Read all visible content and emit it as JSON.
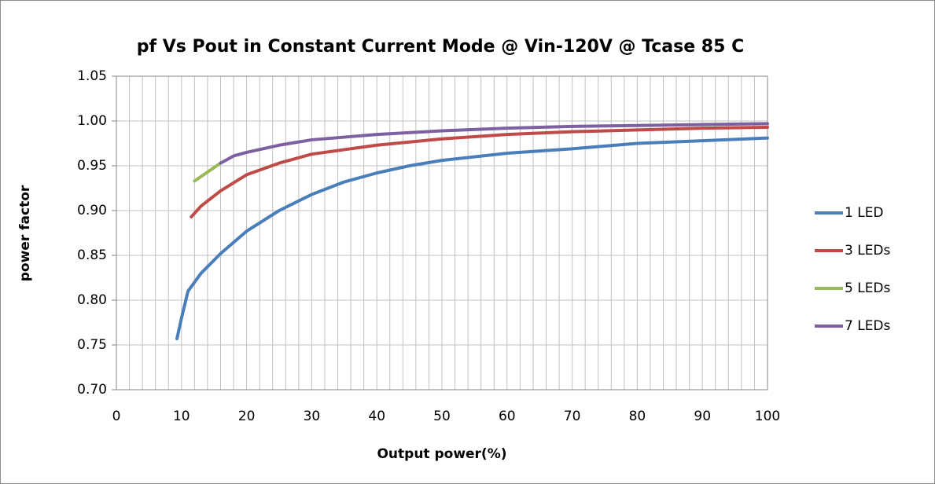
{
  "chart_data": {
    "type": "line",
    "title": "pf Vs Pout in Constant Current Mode @ Vin-120V @ Tcase 85 C",
    "xlabel": "Output power(%)",
    "ylabel": "power factor",
    "xlim": [
      0,
      100
    ],
    "xticks": [
      0,
      10,
      20,
      30,
      40,
      50,
      60,
      70,
      80,
      90,
      100
    ],
    "xminorticks": [
      2,
      4,
      6,
      8,
      12,
      14,
      16,
      18,
      22,
      24,
      26,
      28,
      32,
      34,
      36,
      38,
      42,
      44,
      46,
      48,
      52,
      54,
      56,
      58,
      62,
      64,
      66,
      68,
      72,
      74,
      76,
      78,
      82,
      84,
      86,
      88,
      92,
      94,
      96,
      98
    ],
    "ylim": [
      0.7,
      1.05
    ],
    "yticks": [
      1.05,
      {
        "value": 1,
        "label": "1.00"
      },
      0.95,
      {
        "value": 0.9,
        "label": "0.90"
      },
      0.85,
      {
        "value": 0.8,
        "label": "0.80"
      },
      0.75,
      {
        "value": 0.7,
        "label": "0.70"
      }
    ],
    "grid": true,
    "legend": "right",
    "series": [
      {
        "name": "1 LED",
        "color": "#4a7ebb",
        "x": [
          9.3,
          10,
          11,
          13,
          16,
          20,
          25,
          30,
          35,
          40,
          45,
          50,
          60,
          70,
          80,
          90,
          100
        ],
        "values": [
          0.757,
          0.78,
          0.81,
          0.83,
          0.852,
          0.877,
          0.9,
          0.918,
          0.932,
          0.942,
          0.95,
          0.956,
          0.964,
          0.969,
          0.975,
          0.978,
          0.981
        ]
      },
      {
        "name": "3 LEDs",
        "color": "#be4b48",
        "x": [
          11.5,
          13,
          16,
          20,
          25,
          30,
          40,
          50,
          60,
          70,
          80,
          90,
          100
        ],
        "values": [
          0.893,
          0.905,
          0.922,
          0.94,
          0.953,
          0.963,
          0.973,
          0.98,
          0.985,
          0.988,
          0.99,
          0.992,
          0.993
        ]
      },
      {
        "name": "5 LEDs",
        "color": "#98b954",
        "x": [
          12,
          14,
          16
        ],
        "values": [
          0.933,
          0.943,
          0.953
        ]
      },
      {
        "name": "7 LEDs",
        "color": "#7d60a0",
        "x": [
          16,
          18,
          20,
          25,
          30,
          40,
          50,
          60,
          70,
          80,
          90,
          100
        ],
        "values": [
          0.953,
          0.961,
          0.965,
          0.973,
          0.979,
          0.985,
          0.989,
          0.992,
          0.994,
          0.995,
          0.996,
          0.997
        ]
      }
    ]
  }
}
